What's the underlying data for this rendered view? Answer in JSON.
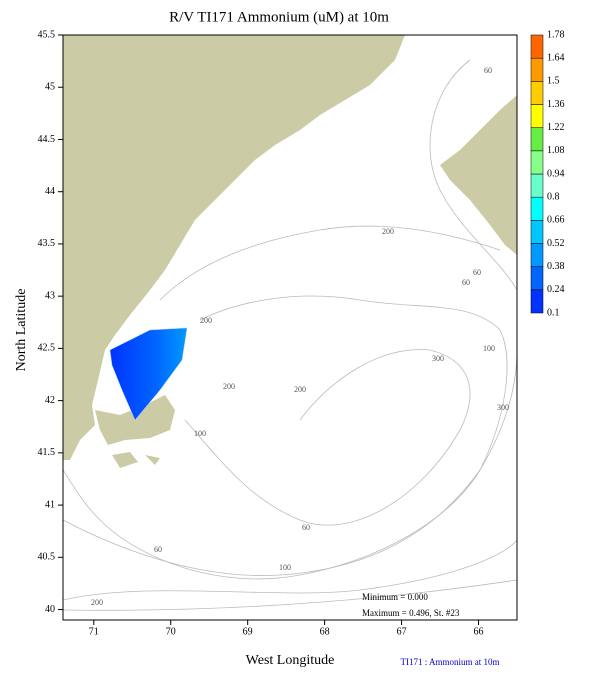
{
  "chart_data": {
    "type": "map",
    "title": "R/V TI171 Ammonium (uM) at 10m",
    "xlabel": "West Longitude",
    "ylabel": "North Latitude",
    "xlim": [
      71.4,
      65.5
    ],
    "ylim": [
      39.9,
      45.5
    ],
    "xticks": [
      71,
      70,
      69,
      68,
      67,
      66
    ],
    "yticks": [
      40,
      40.5,
      41,
      41.5,
      42,
      42.5,
      43,
      43.5,
      44,
      44.5,
      45,
      45.5
    ],
    "colorbar": {
      "ticks": [
        0.1,
        0.24,
        0.38,
        0.52,
        0.66,
        0.8,
        0.94,
        1.08,
        1.22,
        1.36,
        1.5,
        1.64,
        1.78
      ],
      "colors": [
        "#0033ff",
        "#0066ff",
        "#0099ff",
        "#00c8ff",
        "#00ffff",
        "#66ffcc",
        "#88ff88",
        "#66ee44",
        "#ffff00",
        "#ffcc00",
        "#ff9900",
        "#ff6600"
      ]
    },
    "contour_labels": [
      60,
      200,
      60,
      60,
      200,
      200,
      200,
      300,
      100,
      300,
      100,
      60,
      60,
      100,
      200
    ],
    "annotations": [
      "Minimum = 0.000",
      "Maximum = 0.496, St. #23"
    ],
    "footer": "TI171 : Ammonium at 10m"
  }
}
